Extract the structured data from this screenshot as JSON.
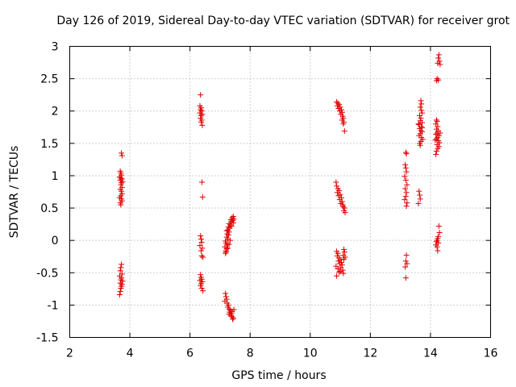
{
  "chart_data": {
    "type": "scatter",
    "title": "Day 126 of 2019, Sidereal Day-to-day VTEC variation (SDTVAR) for receiver grot",
    "xlabel": "GPS time / hours",
    "ylabel": "SDTVAR / TECUs",
    "xlim": [
      2,
      16
    ],
    "ylim": [
      -1.5,
      3
    ],
    "xticks": [
      "2",
      "4",
      "6",
      "8",
      "10",
      "12",
      "14",
      "16"
    ],
    "yticks": [
      "-1.5",
      "-1",
      "-0.5",
      "0",
      "0.5",
      "1",
      "1.5",
      "2",
      "2.5",
      "3"
    ],
    "grid": true,
    "marker": "+",
    "color": "#e00000",
    "series": [
      {
        "name": "SDTVAR",
        "points": [
          [
            3.72,
            1.35
          ],
          [
            3.74,
            1.31
          ],
          [
            3.68,
            1.07
          ],
          [
            3.7,
            1.04
          ],
          [
            3.72,
            1.01
          ],
          [
            3.66,
            0.98
          ],
          [
            3.7,
            0.96
          ],
          [
            3.74,
            0.95
          ],
          [
            3.68,
            0.93
          ],
          [
            3.76,
            0.91
          ],
          [
            3.72,
            0.89
          ],
          [
            3.7,
            0.86
          ],
          [
            3.74,
            0.82
          ],
          [
            3.68,
            0.79
          ],
          [
            3.72,
            0.76
          ],
          [
            3.74,
            0.72
          ],
          [
            3.7,
            0.69
          ],
          [
            3.66,
            0.66
          ],
          [
            3.72,
            0.64
          ],
          [
            3.74,
            0.61
          ],
          [
            3.68,
            0.58
          ],
          [
            3.7,
            0.55
          ],
          [
            3.72,
            -0.37
          ],
          [
            3.7,
            -0.42
          ],
          [
            3.68,
            -0.47
          ],
          [
            3.74,
            -0.52
          ],
          [
            3.66,
            -0.55
          ],
          [
            3.72,
            -0.58
          ],
          [
            3.7,
            -0.61
          ],
          [
            3.76,
            -0.63
          ],
          [
            3.68,
            -0.66
          ],
          [
            3.74,
            -0.68
          ],
          [
            3.72,
            -0.71
          ],
          [
            3.7,
            -0.74
          ],
          [
            3.68,
            -0.79
          ],
          [
            3.66,
            -0.84
          ],
          [
            6.35,
            2.25
          ],
          [
            6.33,
            2.08
          ],
          [
            6.37,
            2.05
          ],
          [
            6.35,
            2.02
          ],
          [
            6.39,
            2.0
          ],
          [
            6.33,
            1.97
          ],
          [
            6.41,
            1.95
          ],
          [
            6.37,
            1.93
          ],
          [
            6.35,
            1.89
          ],
          [
            6.39,
            1.86
          ],
          [
            6.37,
            1.83
          ],
          [
            6.41,
            1.78
          ],
          [
            6.4,
            0.9
          ],
          [
            6.42,
            0.67
          ],
          [
            6.35,
            0.07
          ],
          [
            6.37,
            0.02
          ],
          [
            6.39,
            -0.03
          ],
          [
            6.33,
            -0.08
          ],
          [
            6.41,
            -0.12
          ],
          [
            6.37,
            -0.16
          ],
          [
            6.39,
            -0.24
          ],
          [
            6.43,
            -0.26
          ],
          [
            6.35,
            -0.53
          ],
          [
            6.37,
            -0.57
          ],
          [
            6.39,
            -0.6
          ],
          [
            6.33,
            -0.62
          ],
          [
            6.41,
            -0.64
          ],
          [
            6.37,
            -0.67
          ],
          [
            6.35,
            -0.7
          ],
          [
            6.39,
            -0.74
          ],
          [
            6.43,
            -0.78
          ],
          [
            7.18,
            -0.2
          ],
          [
            7.2,
            -0.16
          ],
          [
            7.22,
            -0.13
          ],
          [
            7.16,
            -0.1
          ],
          [
            7.24,
            -0.07
          ],
          [
            7.2,
            -0.04
          ],
          [
            7.18,
            -0.01
          ],
          [
            7.26,
            0.02
          ],
          [
            7.22,
            0.05
          ],
          [
            7.28,
            0.08
          ],
          [
            7.24,
            0.1
          ],
          [
            7.3,
            0.13
          ],
          [
            7.26,
            0.16
          ],
          [
            7.32,
            0.19
          ],
          [
            7.28,
            0.21
          ],
          [
            7.34,
            0.24
          ],
          [
            7.3,
            0.26
          ],
          [
            7.38,
            0.29
          ],
          [
            7.36,
            0.32
          ],
          [
            7.4,
            0.35
          ],
          [
            7.44,
            0.37
          ],
          [
            7.42,
            0.31
          ],
          [
            7.46,
            0.33
          ],
          [
            7.38,
            0.22
          ],
          [
            7.44,
            0.27
          ],
          [
            7.22,
            0.15
          ],
          [
            7.34,
            0.0
          ],
          [
            7.3,
            -0.06
          ],
          [
            7.26,
            -0.12
          ],
          [
            7.2,
            -0.18
          ],
          [
            7.18,
            -0.82
          ],
          [
            7.2,
            -0.87
          ],
          [
            7.22,
            -0.91
          ],
          [
            7.16,
            -0.94
          ],
          [
            7.24,
            -0.97
          ],
          [
            7.28,
            -1.0
          ],
          [
            7.26,
            -1.03
          ],
          [
            7.3,
            -1.06
          ],
          [
            7.34,
            -1.08
          ],
          [
            7.32,
            -1.11
          ],
          [
            7.38,
            -1.13
          ],
          [
            7.36,
            -1.16
          ],
          [
            7.4,
            -1.18
          ],
          [
            7.44,
            -1.2
          ],
          [
            7.42,
            -1.22
          ],
          [
            7.46,
            -1.07
          ],
          [
            7.4,
            -1.1
          ],
          [
            7.3,
            -1.14
          ],
          [
            10.88,
            2.14
          ],
          [
            10.92,
            2.12
          ],
          [
            10.96,
            2.1
          ],
          [
            10.9,
            2.08
          ],
          [
            11.0,
            2.06
          ],
          [
            10.94,
            2.04
          ],
          [
            11.04,
            2.02
          ],
          [
            10.98,
            2.0
          ],
          [
            11.06,
            1.98
          ],
          [
            11.02,
            1.95
          ],
          [
            11.08,
            1.92
          ],
          [
            11.1,
            1.89
          ],
          [
            11.06,
            1.86
          ],
          [
            11.12,
            1.83
          ],
          [
            11.1,
            1.8
          ],
          [
            11.14,
            1.69
          ],
          [
            10.86,
            0.9
          ],
          [
            10.88,
            0.84
          ],
          [
            10.92,
            0.8
          ],
          [
            10.96,
            0.77
          ],
          [
            10.9,
            0.74
          ],
          [
            11.0,
            0.71
          ],
          [
            10.94,
            0.69
          ],
          [
            11.04,
            0.66
          ],
          [
            10.98,
            0.63
          ],
          [
            11.06,
            0.6
          ],
          [
            11.02,
            0.57
          ],
          [
            11.08,
            0.55
          ],
          [
            11.1,
            0.52
          ],
          [
            11.14,
            0.5
          ],
          [
            11.12,
            0.46
          ],
          [
            11.16,
            0.43
          ],
          [
            10.88,
            -0.17
          ],
          [
            10.92,
            -0.2
          ],
          [
            11.12,
            -0.14
          ],
          [
            11.14,
            -0.18
          ],
          [
            10.9,
            -0.24
          ],
          [
            10.96,
            -0.27
          ],
          [
            11.1,
            -0.23
          ],
          [
            11.0,
            -0.3
          ],
          [
            10.94,
            -0.32
          ],
          [
            11.04,
            -0.34
          ],
          [
            10.98,
            -0.36
          ],
          [
            11.06,
            -0.38
          ],
          [
            10.86,
            -0.4
          ],
          [
            11.02,
            -0.42
          ],
          [
            10.92,
            -0.44
          ],
          [
            11.08,
            -0.46
          ],
          [
            10.96,
            -0.49
          ],
          [
            11.1,
            -0.51
          ],
          [
            10.88,
            -0.55
          ],
          [
            11.12,
            -0.29
          ],
          [
            11.16,
            -0.26
          ],
          [
            11.0,
            -0.48
          ],
          [
            13.18,
            1.36
          ],
          [
            13.2,
            1.34
          ],
          [
            13.16,
            1.17
          ],
          [
            13.18,
            1.12
          ],
          [
            13.2,
            1.06
          ],
          [
            13.14,
            0.99
          ],
          [
            13.18,
            0.93
          ],
          [
            13.22,
            0.86
          ],
          [
            13.16,
            0.8
          ],
          [
            13.2,
            0.74
          ],
          [
            13.18,
            0.68
          ],
          [
            13.14,
            0.63
          ],
          [
            13.22,
            0.58
          ],
          [
            13.2,
            0.53
          ],
          [
            13.2,
            -0.23
          ],
          [
            13.18,
            -0.32
          ],
          [
            13.22,
            -0.36
          ],
          [
            13.16,
            -0.41
          ],
          [
            13.18,
            -0.58
          ],
          [
            13.62,
            0.76
          ],
          [
            13.64,
            0.7
          ],
          [
            13.66,
            0.64
          ],
          [
            13.6,
            0.57
          ],
          [
            13.68,
            2.16
          ],
          [
            13.7,
            2.11
          ],
          [
            13.66,
            2.06
          ],
          [
            13.7,
            2.01
          ],
          [
            13.72,
            1.97
          ],
          [
            13.64,
            1.93
          ],
          [
            13.68,
            1.89
          ],
          [
            13.66,
            1.85
          ],
          [
            13.72,
            1.82
          ],
          [
            13.62,
            1.79
          ],
          [
            13.7,
            1.76
          ],
          [
            13.64,
            1.73
          ],
          [
            13.68,
            1.7
          ],
          [
            13.72,
            1.68
          ],
          [
            13.66,
            1.65
          ],
          [
            13.62,
            1.62
          ],
          [
            13.7,
            1.59
          ],
          [
            13.74,
            1.56
          ],
          [
            13.68,
            1.53
          ],
          [
            13.64,
            1.5
          ],
          [
            13.66,
            1.47
          ],
          [
            13.72,
            1.74
          ],
          [
            13.6,
            1.8
          ],
          [
            14.28,
            2.87
          ],
          [
            14.26,
            2.82
          ],
          [
            14.3,
            2.77
          ],
          [
            14.24,
            2.74
          ],
          [
            14.32,
            2.72
          ],
          [
            14.22,
            2.5
          ],
          [
            14.26,
            2.48
          ],
          [
            14.2,
            2.47
          ],
          [
            14.2,
            1.86
          ],
          [
            14.22,
            1.84
          ],
          [
            14.18,
            1.8
          ],
          [
            14.24,
            1.76
          ],
          [
            14.2,
            1.72
          ],
          [
            14.26,
            1.69
          ],
          [
            14.22,
            1.66
          ],
          [
            14.18,
            1.64
          ],
          [
            14.28,
            1.62
          ],
          [
            14.24,
            1.59
          ],
          [
            14.2,
            1.57
          ],
          [
            14.26,
            1.54
          ],
          [
            14.3,
            1.51
          ],
          [
            14.22,
            1.48
          ],
          [
            14.28,
            1.45
          ],
          [
            14.24,
            1.42
          ],
          [
            14.2,
            1.38
          ],
          [
            14.18,
            1.33
          ],
          [
            14.32,
            1.66
          ],
          [
            14.16,
            1.55
          ],
          [
            14.28,
            0.22
          ],
          [
            14.3,
            0.12
          ],
          [
            14.26,
            0.06
          ],
          [
            14.24,
            0.03
          ],
          [
            14.22,
            0.0
          ],
          [
            14.2,
            -0.02
          ],
          [
            14.26,
            -0.04
          ],
          [
            14.18,
            -0.07
          ],
          [
            14.22,
            -0.1
          ],
          [
            14.24,
            -0.16
          ]
        ]
      }
    ]
  }
}
